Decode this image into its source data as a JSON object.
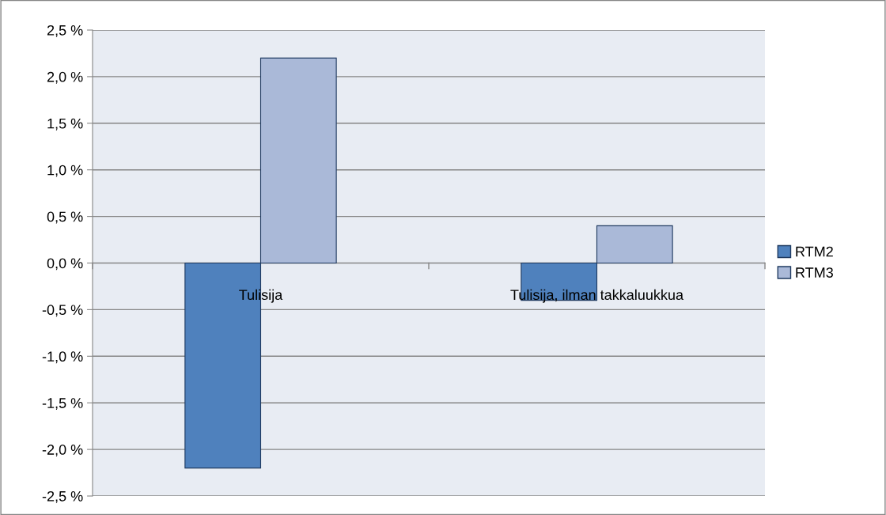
{
  "chart_data": {
    "type": "bar",
    "categories": [
      "Tulisija",
      "Tulisija, ilman takkaluukkua"
    ],
    "series": [
      {
        "name": "RTM2",
        "color": "#4f81bd",
        "values": [
          -2.2,
          -0.4
        ]
      },
      {
        "name": "RTM3",
        "color": "#aab9d8",
        "values": [
          2.2,
          0.4
        ]
      }
    ],
    "ylim": [
      -2.5,
      2.5
    ],
    "yticks": [
      {
        "value": -2.5,
        "label": "-2,5 %"
      },
      {
        "value": -2.0,
        "label": "-2,0 %"
      },
      {
        "value": -1.5,
        "label": "-1,5 %"
      },
      {
        "value": -1.0,
        "label": "-1,0 %"
      },
      {
        "value": -0.5,
        "label": "-0,5 %"
      },
      {
        "value": 0.0,
        "label": "0,0 %"
      },
      {
        "value": 0.5,
        "label": "0,5 %"
      },
      {
        "value": 1.0,
        "label": "1,0 %"
      },
      {
        "value": 1.5,
        "label": "1,5 %"
      },
      {
        "value": 2.0,
        "label": "2,0 %"
      },
      {
        "value": 2.5,
        "label": "2,5 %"
      }
    ],
    "grid": "y",
    "legend": "right"
  }
}
